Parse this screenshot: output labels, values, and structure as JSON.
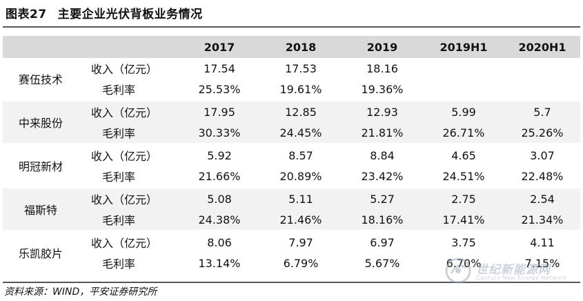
{
  "title": {
    "id": "图表27",
    "text": "主要企业光伏背板业务情况"
  },
  "header": [
    "",
    "",
    "2017",
    "2018",
    "2019",
    "2019H1",
    "2020H1"
  ],
  "companies": [
    {
      "name": "赛伍技术",
      "rows": [
        {
          "metric": "收入（亿元）",
          "values": [
            "17.54",
            "17.53",
            "18.16",
            "",
            ""
          ]
        },
        {
          "metric": "毛利率",
          "values": [
            "25.53%",
            "19.61%",
            "19.36%",
            "",
            ""
          ]
        }
      ]
    },
    {
      "name": "中来股份",
      "rows": [
        {
          "metric": "收入（亿元）",
          "values": [
            "17.95",
            "12.85",
            "12.93",
            "5.99",
            "5.7"
          ]
        },
        {
          "metric": "毛利率",
          "values": [
            "30.33%",
            "24.45%",
            "21.81%",
            "26.71%",
            "25.26%"
          ]
        }
      ]
    },
    {
      "name": "明冠新材",
      "rows": [
        {
          "metric": "收入（亿元）",
          "values": [
            "5.92",
            "8.57",
            "8.84",
            "4.65",
            "3.07"
          ]
        },
        {
          "metric": "毛利率",
          "values": [
            "21.66%",
            "20.89%",
            "23.42%",
            "24.51%",
            "22.48%"
          ]
        }
      ]
    },
    {
      "name": "福斯特",
      "rows": [
        {
          "metric": "收入（亿元）",
          "values": [
            "5.08",
            "5.11",
            "5.27",
            "2.75",
            "2.54"
          ]
        },
        {
          "metric": "毛利率",
          "values": [
            "24.38%",
            "21.46%",
            "18.16%",
            "17.41%",
            "21.34%"
          ]
        }
      ]
    },
    {
      "name": "乐凯胶片",
      "rows": [
        {
          "metric": "收入（亿元）",
          "values": [
            "8.06",
            "7.97",
            "6.97",
            "3.75",
            "4.11"
          ]
        },
        {
          "metric": "毛利率",
          "values": [
            "13.14%",
            "6.79%",
            "5.67%",
            "6.70%",
            "7.15%"
          ]
        }
      ]
    }
  ],
  "source": "资料来源：WIND，平安证券研究所",
  "watermark": {
    "text": "世纪新能源网",
    "sub": "Century New Energy Network"
  }
}
